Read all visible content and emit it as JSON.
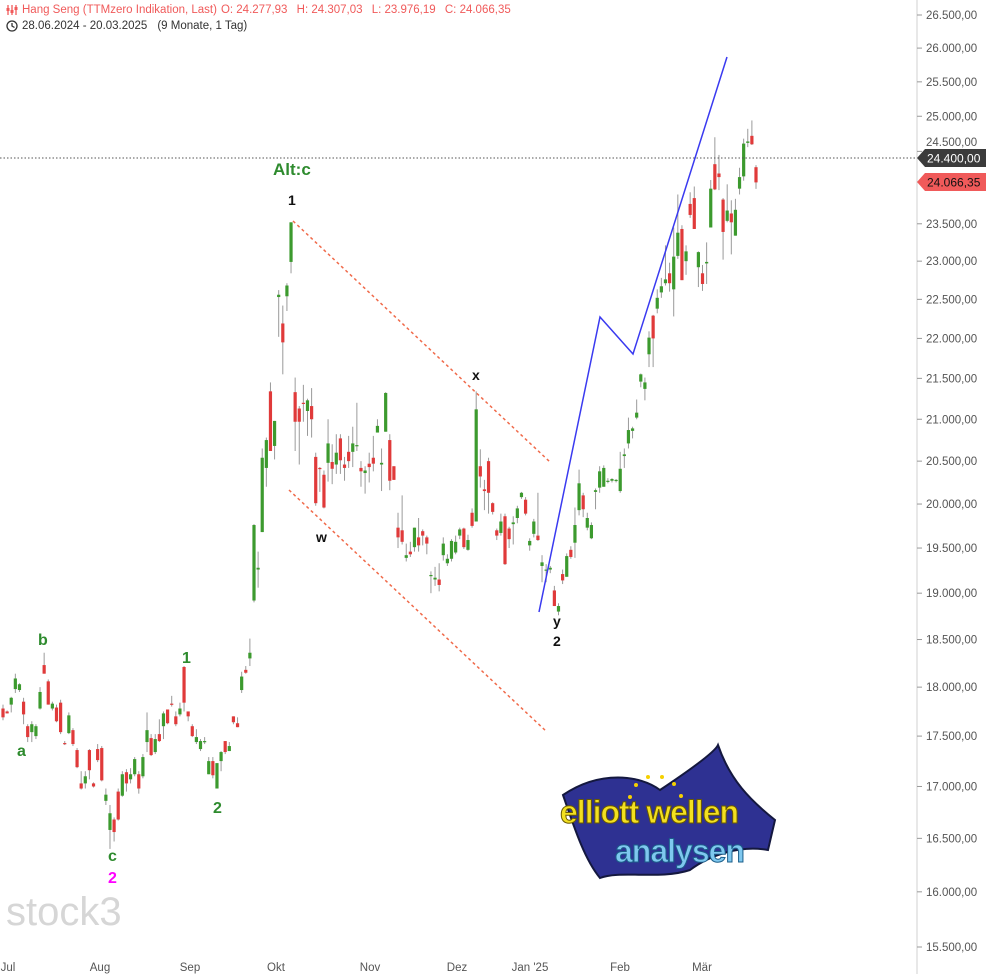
{
  "header": {
    "instrument": "Hang Seng (TTMzero Indikation, Last)",
    "open": "O: 24.277,93",
    "high": "H: 24.307,03",
    "low": "L: 23.976,19",
    "close": "C: 24.066,35",
    "range": "28.06.2024 - 20.03.2025",
    "duration": "(9 Monate, 1 Tag)",
    "instrument_icon": "candlestick-settings-icon",
    "range_icon": "clock-icon"
  },
  "watermark": "stock3",
  "logo": {
    "line1": "elliott wellen",
    "line2": "analysen"
  },
  "colors": {
    "up": "#3c9a2e",
    "down": "#e03a3a",
    "wick": "#9a9a9a",
    "trend_red": "#f06a4a",
    "trend_blue": "#3a3af0",
    "label_green": "#2e8b2e",
    "label_magenta": "#ff00ff",
    "last_tag": "#3b3b3b",
    "close_tag": "#f05a5a"
  },
  "price_tags": {
    "line": "24.400,00",
    "close": "24.066,35"
  },
  "annotations": {
    "a": "a",
    "b": "b",
    "c": "c",
    "two_magenta": "2",
    "one_green": "1",
    "two_green": "2",
    "altc": "Alt:c",
    "one_black": "1",
    "w": "w",
    "x": "x",
    "y": "y",
    "two_black": "2"
  },
  "chart_data": {
    "type": "candlestick",
    "title": "Hang Seng (TTMzero Indikation, Last)",
    "y_scale": "log",
    "ylim": [
      15500,
      26500
    ],
    "grid": false,
    "y_ticks": [
      {
        "value": 26500,
        "label": "26.500,00"
      },
      {
        "value": 26000,
        "label": "26.000,00"
      },
      {
        "value": 25500,
        "label": "25.500,00"
      },
      {
        "value": 25000,
        "label": "25.000,00"
      },
      {
        "value": 24500,
        "label": "24.500,00"
      },
      {
        "value": 23500,
        "label": "23.500,00"
      },
      {
        "value": 23000,
        "label": "23.000,00"
      },
      {
        "value": 22500,
        "label": "22.500,00"
      },
      {
        "value": 22000,
        "label": "22.000,00"
      },
      {
        "value": 21500,
        "label": "21.500,00"
      },
      {
        "value": 21000,
        "label": "21.000,00"
      },
      {
        "value": 20500,
        "label": "20.500,00"
      },
      {
        "value": 20000,
        "label": "20.000,00"
      },
      {
        "value": 19500,
        "label": "19.500,00"
      },
      {
        "value": 19000,
        "label": "19.000,00"
      },
      {
        "value": 18500,
        "label": "18.500,00"
      },
      {
        "value": 18000,
        "label": "18.000,00"
      },
      {
        "value": 17500,
        "label": "17.500,00"
      },
      {
        "value": 17000,
        "label": "17.000,00"
      },
      {
        "value": 16500,
        "label": "16.500,00"
      },
      {
        "value": 16000,
        "label": "16.000,00"
      },
      {
        "value": 15500,
        "label": "15.500,00"
      }
    ],
    "x_ticks": [
      "Jul",
      "Aug",
      "Sep",
      "Okt",
      "Nov",
      "Dez",
      "Jan '25",
      "Feb",
      "Mär"
    ],
    "horizontal_line": 24400,
    "last_close": 24066.35,
    "ohlc": [
      [
        17780,
        17820,
        17660,
        17690
      ],
      [
        17750,
        17760,
        17730,
        17730
      ],
      [
        17820,
        17900,
        17740,
        17890
      ],
      [
        17980,
        18140,
        17940,
        18090
      ],
      [
        17970,
        18040,
        17950,
        18030
      ],
      [
        17850,
        17890,
        17620,
        17720
      ],
      [
        17600,
        17620,
        17440,
        17490
      ],
      [
        17540,
        17650,
        17440,
        17620
      ],
      [
        17500,
        17620,
        17470,
        17600
      ],
      [
        17780,
        18000,
        17770,
        17950
      ],
      [
        18230,
        18360,
        18140,
        18140
      ],
      [
        18060,
        18080,
        17820,
        17820
      ],
      [
        17780,
        17850,
        17760,
        17830
      ],
      [
        17790,
        17820,
        17640,
        17650
      ],
      [
        17840,
        17870,
        17520,
        17540
      ],
      [
        17430,
        17450,
        17410,
        17420
      ],
      [
        17530,
        17740,
        17520,
        17710
      ],
      [
        17560,
        17580,
        17400,
        17420
      ],
      [
        17360,
        17380,
        17180,
        17190
      ],
      [
        17030,
        17150,
        16970,
        16980
      ],
      [
        17030,
        17150,
        16980,
        17100
      ],
      [
        17360,
        17370,
        17070,
        17160
      ],
      [
        17030,
        17040,
        16990,
        17000
      ],
      [
        17370,
        17420,
        17240,
        17260
      ],
      [
        17380,
        17400,
        17050,
        17060
      ],
      [
        16860,
        16980,
        16820,
        16920
      ],
      [
        16580,
        16820,
        16400,
        16740
      ],
      [
        16680,
        16700,
        16470,
        16560
      ],
      [
        16950,
        16980,
        16670,
        16680
      ],
      [
        16910,
        17150,
        16900,
        17120
      ],
      [
        17140,
        17170,
        16950,
        17030
      ],
      [
        17070,
        17180,
        17030,
        17120
      ],
      [
        17120,
        17290,
        17100,
        17270
      ],
      [
        17120,
        17150,
        16930,
        16980
      ],
      [
        17100,
        17320,
        17080,
        17290
      ],
      [
        17440,
        17740,
        17340,
        17560
      ],
      [
        17480,
        17520,
        17300,
        17310
      ],
      [
        17340,
        17520,
        17320,
        17470
      ],
      [
        17520,
        17670,
        17440,
        17450
      ],
      [
        17600,
        17750,
        17470,
        17730
      ],
      [
        17770,
        17770,
        17620,
        17630
      ],
      [
        17830,
        17910,
        17800,
        17820
      ],
      [
        17700,
        17750,
        17600,
        17620
      ],
      [
        17720,
        17840,
        17700,
        17780
      ],
      [
        18210,
        18220,
        17750,
        17840
      ],
      [
        17750,
        17750,
        17650,
        17700
      ],
      [
        17600,
        17620,
        17490,
        17500
      ],
      [
        17440,
        17570,
        17420,
        17490
      ],
      [
        17370,
        17470,
        17350,
        17450
      ],
      [
        17440,
        17490,
        17420,
        17450
      ],
      [
        17120,
        17290,
        17120,
        17250
      ],
      [
        17250,
        17290,
        17080,
        17110
      ],
      [
        16980,
        17230,
        16980,
        17230
      ],
      [
        17250,
        17350,
        17150,
        17340
      ],
      [
        17450,
        17450,
        17320,
        17340
      ],
      [
        17350,
        17440,
        17350,
        17400
      ],
      [
        17700,
        17700,
        17620,
        17640
      ],
      [
        17630,
        17690,
        17590,
        17590
      ],
      [
        17970,
        18160,
        17940,
        18110
      ],
      [
        18180,
        18220,
        18140,
        18150
      ],
      [
        18300,
        18510,
        18220,
        18360
      ],
      [
        18920,
        19770,
        18900,
        19760
      ],
      [
        19260,
        19460,
        19060,
        19280
      ],
      [
        19680,
        20650,
        19680,
        20540
      ],
      [
        20420,
        20780,
        20200,
        20750
      ],
      [
        21340,
        21450,
        20620,
        20620
      ],
      [
        20680,
        20980,
        20520,
        20980
      ],
      [
        22530,
        22620,
        22020,
        22560
      ],
      [
        22190,
        22420,
        21550,
        21950
      ],
      [
        22540,
        22710,
        22350,
        22680
      ],
      [
        22990,
        23520,
        22840,
        23520
      ],
      [
        21330,
        21510,
        20620,
        20970
      ],
      [
        21130,
        21160,
        20460,
        20970
      ],
      [
        21200,
        21420,
        20970,
        21190
      ],
      [
        21100,
        21250,
        20800,
        21230
      ],
      [
        21160,
        21380,
        20780,
        21000
      ],
      [
        20550,
        20600,
        19980,
        20010
      ],
      [
        20420,
        20430,
        20140,
        20410
      ],
      [
        20340,
        20390,
        19950,
        19960
      ],
      [
        20480,
        21000,
        20260,
        20710
      ],
      [
        20490,
        20700,
        20230,
        20410
      ],
      [
        20460,
        20820,
        20350,
        20600
      ],
      [
        20770,
        20820,
        20350,
        20510
      ],
      [
        20460,
        20550,
        20270,
        20420
      ],
      [
        20610,
        20800,
        20420,
        20500
      ],
      [
        20610,
        20910,
        20430,
        20710
      ],
      [
        20680,
        21200,
        20620,
        20690
      ],
      [
        20420,
        20500,
        20200,
        20380
      ],
      [
        20360,
        20440,
        20120,
        20390
      ],
      [
        20470,
        20600,
        20250,
        20430
      ],
      [
        20540,
        20800,
        20380,
        20470
      ],
      [
        20840,
        21000,
        20840,
        20920
      ],
      [
        20460,
        20650,
        20150,
        20480
      ],
      [
        20850,
        21330,
        20850,
        21320
      ],
      [
        20750,
        20820,
        20160,
        20270
      ],
      [
        20440,
        20440,
        20280,
        20280
      ],
      [
        19730,
        19900,
        19500,
        19620
      ],
      [
        19700,
        20100,
        19540,
        19570
      ],
      [
        19390,
        19550,
        19350,
        19420
      ],
      [
        19460,
        19570,
        19400,
        19430
      ],
      [
        19510,
        19730,
        19460,
        19730
      ],
      [
        19620,
        19840,
        19460,
        19530
      ],
      [
        19690,
        19710,
        19530,
        19640
      ],
      [
        19620,
        19640,
        19430,
        19550
      ],
      [
        19190,
        19240,
        19000,
        19200
      ],
      [
        19150,
        19290,
        19080,
        19170
      ],
      [
        19150,
        19330,
        19020,
        19090
      ],
      [
        19420,
        19620,
        19360,
        19550
      ],
      [
        19330,
        19430,
        19300,
        19380
      ],
      [
        19380,
        19600,
        19350,
        19580
      ],
      [
        19450,
        19640,
        19430,
        19570
      ],
      [
        19640,
        19730,
        19600,
        19710
      ],
      [
        19720,
        19730,
        19490,
        19510
      ],
      [
        19480,
        19650,
        19470,
        19590
      ],
      [
        19900,
        19950,
        19730,
        19750
      ],
      [
        19800,
        21340,
        19800,
        21120
      ],
      [
        20440,
        20640,
        20190,
        20320
      ],
      [
        20170,
        20280,
        19930,
        20150
      ],
      [
        20500,
        20540,
        19890,
        20130
      ],
      [
        20010,
        20020,
        19880,
        19910
      ],
      [
        19700,
        19720,
        19590,
        19640
      ],
      [
        19670,
        19890,
        19640,
        19800
      ],
      [
        19860,
        19890,
        19310,
        19320
      ],
      [
        19720,
        19740,
        19500,
        19600
      ],
      [
        19770,
        19860,
        19540,
        19790
      ],
      [
        19840,
        19980,
        19780,
        19950
      ],
      [
        20080,
        20140,
        20060,
        20130
      ],
      [
        20050,
        20080,
        19870,
        19890
      ],
      [
        19530,
        19610,
        19470,
        19580
      ],
      [
        19660,
        19830,
        19620,
        19800
      ],
      [
        19640,
        20130,
        19580,
        19590
      ],
      [
        19300,
        19420,
        19120,
        19340
      ],
      [
        19250,
        19320,
        19120,
        19260
      ],
      [
        19260,
        19300,
        19220,
        19280
      ],
      [
        19030,
        19080,
        18860,
        18860
      ],
      [
        18800,
        18890,
        18760,
        18860
      ],
      [
        19210,
        19260,
        19100,
        19140
      ],
      [
        19180,
        19440,
        19180,
        19410
      ],
      [
        19480,
        19520,
        19380,
        19400
      ],
      [
        19560,
        19960,
        19390,
        19760
      ],
      [
        19930,
        20400,
        19870,
        20240
      ],
      [
        20100,
        20130,
        19850,
        19940
      ],
      [
        19730,
        19900,
        19700,
        19840
      ],
      [
        19610,
        19790,
        19600,
        19760
      ],
      [
        20140,
        20180,
        19940,
        20160
      ],
      [
        20190,
        20440,
        20130,
        20380
      ],
      [
        20200,
        20450,
        20200,
        20420
      ],
      [
        20260,
        20300,
        20240,
        20270
      ],
      [
        20270,
        20300,
        20250,
        20290
      ],
      [
        20270,
        20290,
        20250,
        20280
      ],
      [
        20150,
        20610,
        20130,
        20410
      ],
      [
        20560,
        20650,
        20420,
        20580
      ],
      [
        20710,
        21020,
        20650,
        20870
      ],
      [
        20860,
        20910,
        20770,
        20890
      ],
      [
        21020,
        21240,
        21000,
        21080
      ],
      [
        21460,
        21560,
        21390,
        21550
      ],
      [
        21370,
        21510,
        21230,
        21450
      ],
      [
        21800,
        22090,
        21640,
        22010
      ],
      [
        22290,
        22300,
        21640,
        22000
      ],
      [
        22380,
        22630,
        22320,
        22520
      ],
      [
        22590,
        22780,
        22520,
        22670
      ],
      [
        22710,
        23210,
        22680,
        22760
      ],
      [
        22840,
        22980,
        22600,
        22710
      ],
      [
        22630,
        23450,
        22280,
        23060
      ],
      [
        23070,
        23900,
        23030,
        23380
      ],
      [
        23430,
        23480,
        22750,
        22750
      ],
      [
        23000,
        23210,
        22820,
        23130
      ],
      [
        23770,
        23930,
        23580,
        23620
      ],
      [
        23850,
        24010,
        23430,
        23430
      ],
      [
        22920,
        23130,
        22660,
        23120
      ],
      [
        22840,
        22950,
        22610,
        22700
      ],
      [
        22970,
        23250,
        22700,
        22990
      ],
      [
        23450,
        24100,
        23450,
        23980
      ],
      [
        24320,
        24700,
        23960,
        23970
      ],
      [
        24190,
        24450,
        23960,
        24140
      ],
      [
        23830,
        23850,
        23020,
        23390
      ],
      [
        23540,
        24040,
        23520,
        23680
      ],
      [
        23640,
        23820,
        23090,
        23520
      ],
      [
        23340,
        23840,
        23340,
        23690
      ],
      [
        23980,
        24270,
        23900,
        24140
      ],
      [
        24150,
        24680,
        24090,
        24610
      ],
      [
        24620,
        24820,
        24560,
        24640
      ],
      [
        24720,
        24940,
        24590,
        24600
      ],
      [
        24277.93,
        24307.03,
        23976.19,
        24066.35
      ]
    ]
  }
}
